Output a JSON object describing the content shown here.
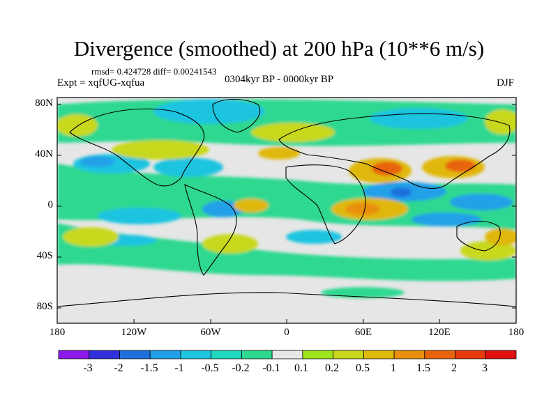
{
  "title": "Divergence (smoothed) at 200 hPa (10**6 m/s)",
  "stats": "rmsd= 0.424728 diff= 0.00241543",
  "experiment": "Expt = xqfUG-xqfua",
  "period": "0304kyr BP - 0000kyr BP",
  "season": "DJF",
  "axes": {
    "y_ticks": [
      "80N",
      "40N",
      "0",
      "40S",
      "80S"
    ],
    "x_ticks": [
      "180",
      "120W",
      "60W",
      "0",
      "60E",
      "120E",
      "180"
    ]
  },
  "colorbar": {
    "colors": [
      "#8c1aea",
      "#3131dc",
      "#1e70dc",
      "#20a0e8",
      "#1ec4e0",
      "#20d8c0",
      "#2ed890",
      "#e6e6e6",
      "#a0e41e",
      "#c8d81e",
      "#e0b80c",
      "#e8900e",
      "#e8640c",
      "#e83a0c",
      "#e01010"
    ],
    "labels": [
      "-3",
      "-2",
      "-1.5",
      "-1",
      "-0.5",
      "-0.2",
      "-0.1",
      "0.1",
      "0.2",
      "0.5",
      "1",
      "1.5",
      "2",
      "3"
    ]
  }
}
